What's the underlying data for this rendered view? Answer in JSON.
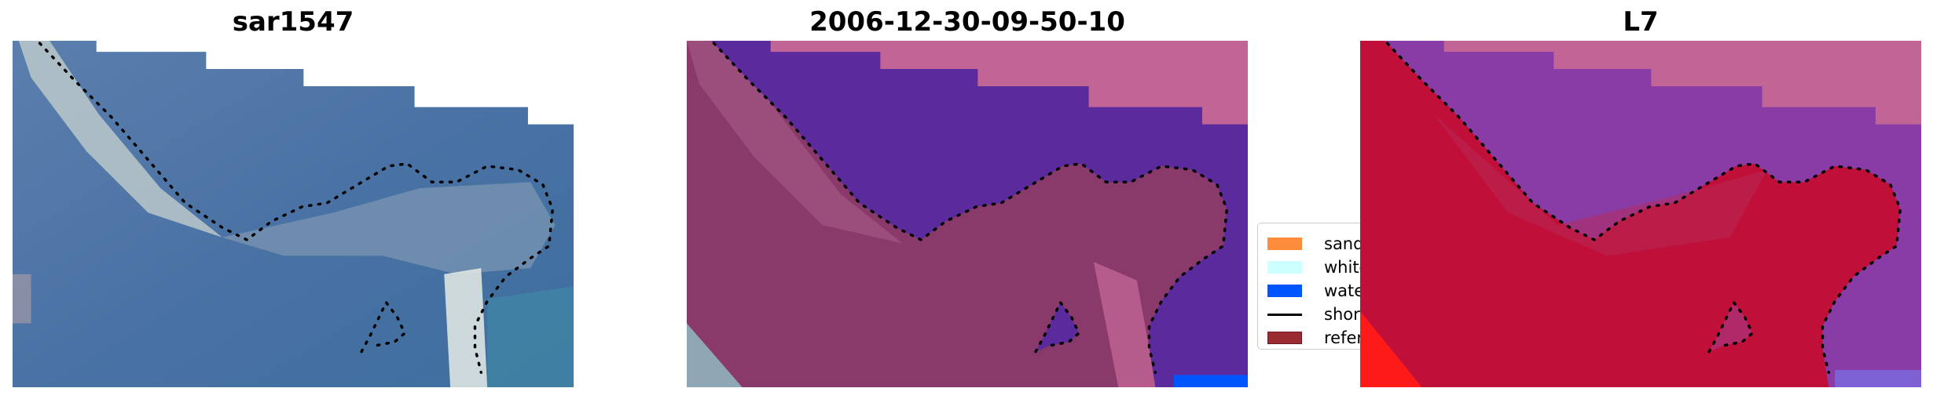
{
  "panels": [
    {
      "title": "sar1547"
    },
    {
      "title": "2006-12-30-09-50-10"
    },
    {
      "title": "L7"
    }
  ],
  "legend": {
    "items": [
      {
        "label": "sand",
        "color": "#ff8c3a"
      },
      {
        "label": "whitew",
        "color": "#ccffff"
      },
      {
        "label": "water",
        "color": "#0055ff"
      },
      {
        "label": "shorel",
        "color": "#000000"
      },
      {
        "label": "referen",
        "color": "#9b2b32"
      }
    ]
  },
  "colors": {
    "rgb_water": "#3f6b9c",
    "rgb_land": "#5f7fa8",
    "class_water": "#5b2a9c",
    "class_land": "#8a3a6a",
    "class_pink": "#c06595",
    "mndwi_land": "#c0103a",
    "mndwi_water": "#8a3ca6"
  }
}
